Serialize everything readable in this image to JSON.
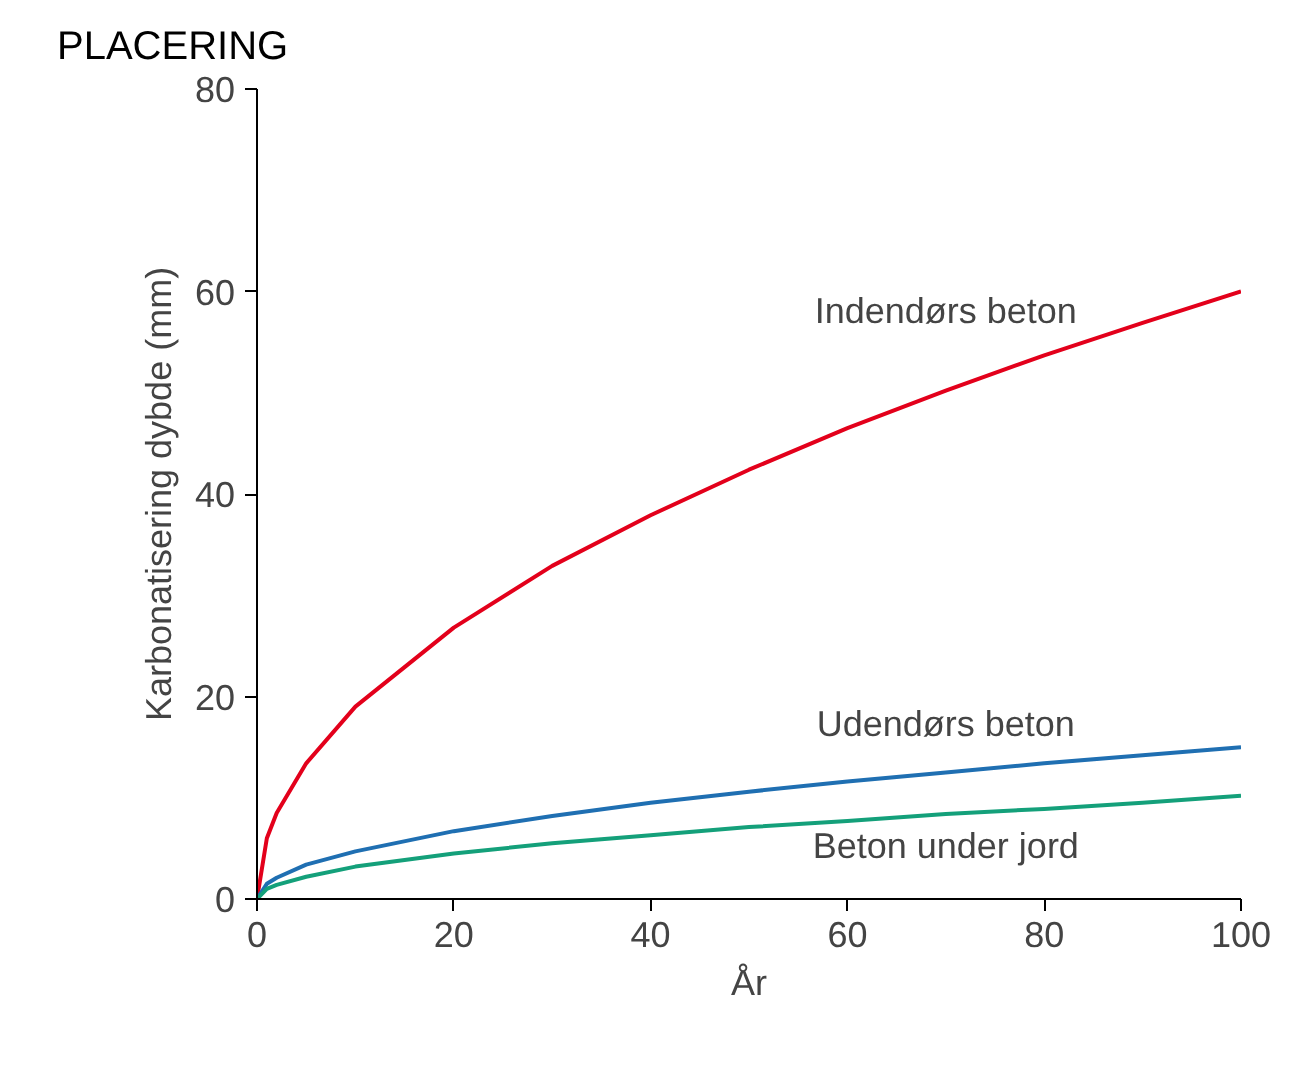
{
  "chart_data": {
    "type": "line",
    "title": "PLACERING",
    "xlabel": "År",
    "ylabel": "Karbonatisering dybde (mm)",
    "x": [
      0,
      1,
      2,
      5,
      10,
      20,
      30,
      40,
      50,
      60,
      70,
      80,
      90,
      100
    ],
    "series": [
      {
        "name": "Indendørs beton",
        "color": "#e3001b",
        "values": [
          0,
          6,
          8.5,
          13.4,
          19,
          26.8,
          32.9,
          37.9,
          42.4,
          46.5,
          50.2,
          53.7,
          56.9,
          60
        ]
      },
      {
        "name": "Udendørs beton",
        "color": "#1f6fb2",
        "values": [
          0,
          1.5,
          2.1,
          3.4,
          4.7,
          6.7,
          8.2,
          9.5,
          10.6,
          11.6,
          12.5,
          13.4,
          14.2,
          15
        ]
      },
      {
        "name": "Beton under jord",
        "color": "#14a07a",
        "values": [
          0,
          1,
          1.4,
          2.2,
          3.2,
          4.5,
          5.5,
          6.3,
          7.1,
          7.7,
          8.4,
          8.9,
          9.5,
          10.2
        ]
      }
    ],
    "xlim": [
      0,
      100
    ],
    "ylim": [
      0,
      80
    ],
    "xticks": [
      0,
      20,
      40,
      60,
      80,
      100
    ],
    "yticks": [
      0,
      20,
      40,
      60,
      80
    ],
    "grid": false,
    "marker": "none",
    "line_style": "solid"
  }
}
